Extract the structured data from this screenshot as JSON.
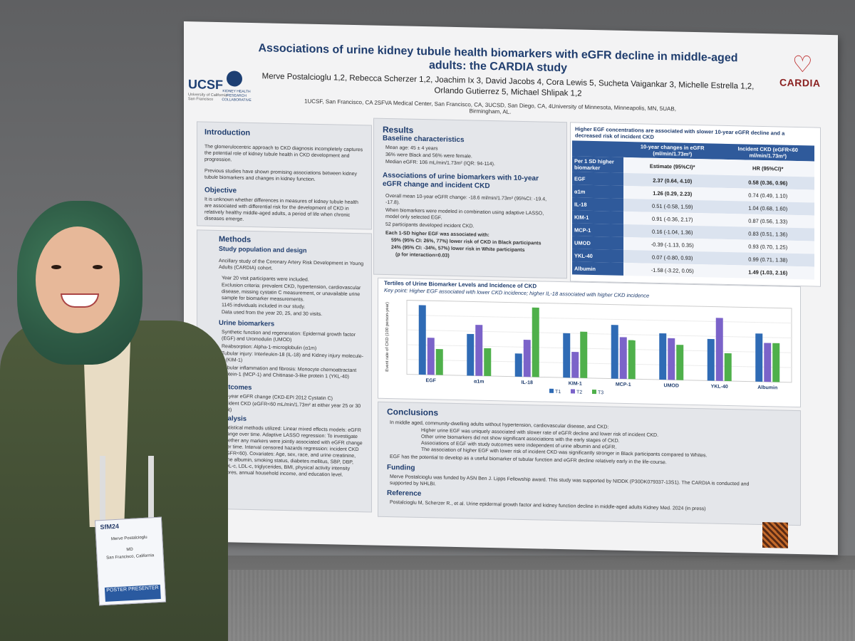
{
  "poster": {
    "title": "Associations of urine kidney tubule health biomarkers with eGFR decline in middle-aged adults: the CARDIA study",
    "authors": "Merve Postalcioglu 1,2, Rebecca Scherzer 1,2, Joachim Ix 3, David Jacobs 4, Cora Lewis 5, Sucheta Vaigankar 3, Michelle Estrella 1,2, Orlando Gutierrez 5, Michael Shlipak 1,2",
    "affiliations": "1UCSF, San Francisco, CA 2SFVA Medical Center, San Francisco, CA, 3UCSD, San Diego, CA, 4University of Minnesota, Minneapolis, MN, 5UAB, Birmingham, AL.",
    "logos": {
      "ucsf": "UCSF",
      "ucsf_sub": "University of California San Francisco",
      "khr": "KIDNEY HEALTH RESEARCH COLLABORATIVE",
      "cardia": "CARDIA"
    },
    "introduction": {
      "heading": "Introduction",
      "p1": "The glomerulocentric approach to CKD diagnosis incompletely captures the potential role of kidney tubule health in CKD development and progression.",
      "p2": "Previous studies have shown promising associations between kidney tubule biomarkers and changes in kidney function."
    },
    "objective": {
      "heading": "Objective",
      "text": "It is unknown whether differences in measures of kidney tubule health are associated with differential risk for the development of CKD in relatively healthy middle-aged adults, a period of life when chronic diseases emerge."
    },
    "methods": {
      "heading": "Methods",
      "sub": "Study population and design",
      "text": "Ancillary study of the Coronary Artery Risk Development in Young Adults (CARDIA) cohort.",
      "bullets": [
        "Year 20 visit participants were included.",
        "Exclusion criteria: prevalent CKD, hypertension, cardiovascular disease, missing cystatin C measurement, or unavailable urine sample for biomarker measurements.",
        "1145 individuals included in our study.",
        "Data used from the year 20, 25, and 30 visits."
      ]
    },
    "urine_biomarkers": {
      "heading": "Urine biomarkers",
      "items": [
        "Synthetic function and regeneration: Epidermal growth factor (EGF) and Uromodulin (UMOD)",
        "Reabsorption: Alpha-1-microglobulin (α1m)",
        "Tubular injury: Interleukin-18 (IL-18) and Kidney injury molecule-1 (KIM-1)",
        "Tubular inflammation and fibrosis: Monocyte chemoattractant protein-1 (MCP-1) and Chitinase-3-like protein 1 (YKL-40)"
      ]
    },
    "outcomes": {
      "heading": "Outcomes",
      "items": [
        "10-year eGFR change (CKD-EPI 2012 Cystatin C)",
        "Incident CKD (eGFR<60 mL/min/1.73m² at either year 25 or 30 visit)"
      ]
    },
    "analysis": {
      "heading": "Analysis",
      "text": "Statistical methods utilized: Linear mixed effects models: eGFR change over time. Adaptive LASSO regression: To investigate whether any markers were jointly associated with eGFR change over time. Interval censored hazards regression: incident CKD (eGFR<60). Covariates: Age, sex, race, and urine creatinine, urine albumin, smoking status, diabetes mellitus, SBP, DBP, HDL-c, LDL-c, triglycerides, BMI, physical activity intensity scores, annual household income, and education level."
    },
    "results": {
      "heading": "Results",
      "baseline_heading": "Baseline characteristics",
      "baseline": [
        "Mean age: 45 ± 4 years",
        "36% were Black and 56% were female.",
        "Median eGFR: 106 mL/min/1.73m² (IQR: 94-114)."
      ],
      "assoc_heading": "Associations of urine biomarkers with 10-year eGFR change and incident CKD",
      "assoc": [
        "Overall mean 10-year eGFR change: -18.6 ml/min/1.73m² (95%CI: -19.4, -17.8).",
        "When biomarkers were modeled in combination using adaptive LASSO, model only selected EGF.",
        "52 participants developed incident CKD.",
        "Each 1-SD higher EGF was associated with:",
        "59% (95% CI: 26%, 77%) lower risk of CKD in Black participants",
        "24% (95% CI: -34%, 57%) lower risk in White participants",
        "(p for interaction=0.03)"
      ]
    },
    "table": {
      "title": "Higher EGF concentrations are associated with slower 10-year eGFR decline and a decreased risk of incident CKD",
      "col1_head": "10-year changes in eGFR (ml/min/1.73m²)",
      "col2_head": "Incident CKD (eGFR<60 ml/min/1.73m²)",
      "row_head": "Per 1 SD higher biomarker",
      "sub1": "Estimate (95%CI)*",
      "sub2": "HR (95%CI)*",
      "rows": [
        {
          "label": "EGF",
          "est": "2.37 (0.64, 4.10)",
          "hr": "0.58 (0.36, 0.96)",
          "bold_est": true,
          "bold_hr": true
        },
        {
          "label": "α1m",
          "est": "1.26 (0.29, 2.23)",
          "hr": "0.74 (0.49, 1.10)",
          "bold_est": true,
          "bold_hr": false
        },
        {
          "label": "IL-18",
          "est": "0.51 (-0.58, 1.59)",
          "hr": "1.04 (0.68, 1.60)",
          "bold_est": false,
          "bold_hr": false
        },
        {
          "label": "KIM-1",
          "est": "0.91 (-0.36, 2.17)",
          "hr": "0.87 (0.56, 1.33)",
          "bold_est": false,
          "bold_hr": false
        },
        {
          "label": "MCP-1",
          "est": "0.16 (-1.04, 1.36)",
          "hr": "0.83 (0.51, 1.36)",
          "bold_est": false,
          "bold_hr": false
        },
        {
          "label": "UMOD",
          "est": "-0.39 (-1.13, 0.35)",
          "hr": "0.93 (0.70, 1.25)",
          "bold_est": false,
          "bold_hr": false
        },
        {
          "label": "YKL-40",
          "est": "0.07 (-0.80, 0.93)",
          "hr": "0.99 (0.71, 1.38)",
          "bold_est": false,
          "bold_hr": false
        },
        {
          "label": "Albumin",
          "est": "-1.58 (-3.22, 0.05)",
          "hr": "1.49 (1.03, 2.16)",
          "bold_est": false,
          "bold_hr": true
        }
      ]
    },
    "conclusions": {
      "heading": "Conclusions",
      "lead": "In middle aged, community-dwelling adults without hypertension, cardiovascular disease, and CKD:",
      "items": [
        "Higher urine EGF was uniquely associated with slower rate of eGFR decline and lower risk of incident CKD.",
        "Other urine biomarkers did not show significant associations with the early stages of CKD.",
        "Associations of EGF with study outcomes were independent of urine albumin and eGFR.",
        "The association of higher EGF with lower risk of incident CKD was significantly stronger in Black participants compared to Whites."
      ],
      "last": "EGF has the potential to develop as a useful biomarker of tubular function and eGFR decline relatively early in the life-course."
    },
    "funding": {
      "heading": "Funding",
      "text": "Merve Postalcioglu was funded by ASN Ben J. Lipps Fellowship award. This study was supported by NIDDK (P30DK079337-13S1). The CARDIA is conducted and supported by NHLBI."
    },
    "reference": {
      "heading": "Reference",
      "text": "Postalcioglu M, Scherzer R., et al. Urine epidermal growth factor and kidney function decline in middle-aged adults Kidney Med. 2024 (in press)"
    }
  },
  "chart_data": {
    "type": "bar",
    "title": "Tertiles of Urine Biomarker Levels and Incidence of CKD",
    "subtitle": "Key point: Higher EGF associated with lower CKD incidence; higher IL-18 associated with higher CKD incidence",
    "ylabel": "Event rate of CKD (100 person-year)",
    "categories": [
      "EGF",
      "α1m",
      "IL-18",
      "KIM-1",
      "MCP-1",
      "UMOD",
      "YKL-40",
      "Albumin"
    ],
    "series": [
      {
        "name": "T1",
        "color": "#2f6bb5",
        "values": [
          0.75,
          0.45,
          0.25,
          0.48,
          0.58,
          0.5,
          0.45,
          0.52
        ]
      },
      {
        "name": "T2",
        "color": "#7b63c9",
        "values": [
          0.4,
          0.55,
          0.4,
          0.28,
          0.45,
          0.45,
          0.68,
          0.42
        ]
      },
      {
        "name": "T3",
        "color": "#4fb04b",
        "values": [
          0.28,
          0.3,
          0.75,
          0.5,
          0.42,
          0.38,
          0.3,
          0.42
        ]
      }
    ],
    "legend_position": "bottom",
    "grid": true
  },
  "badge": {
    "event": "SfM24",
    "name": "Merve Postalcioglu",
    "degree": "MD",
    "location": "San Francisco, California",
    "role": "POSTER PRESENTER"
  }
}
